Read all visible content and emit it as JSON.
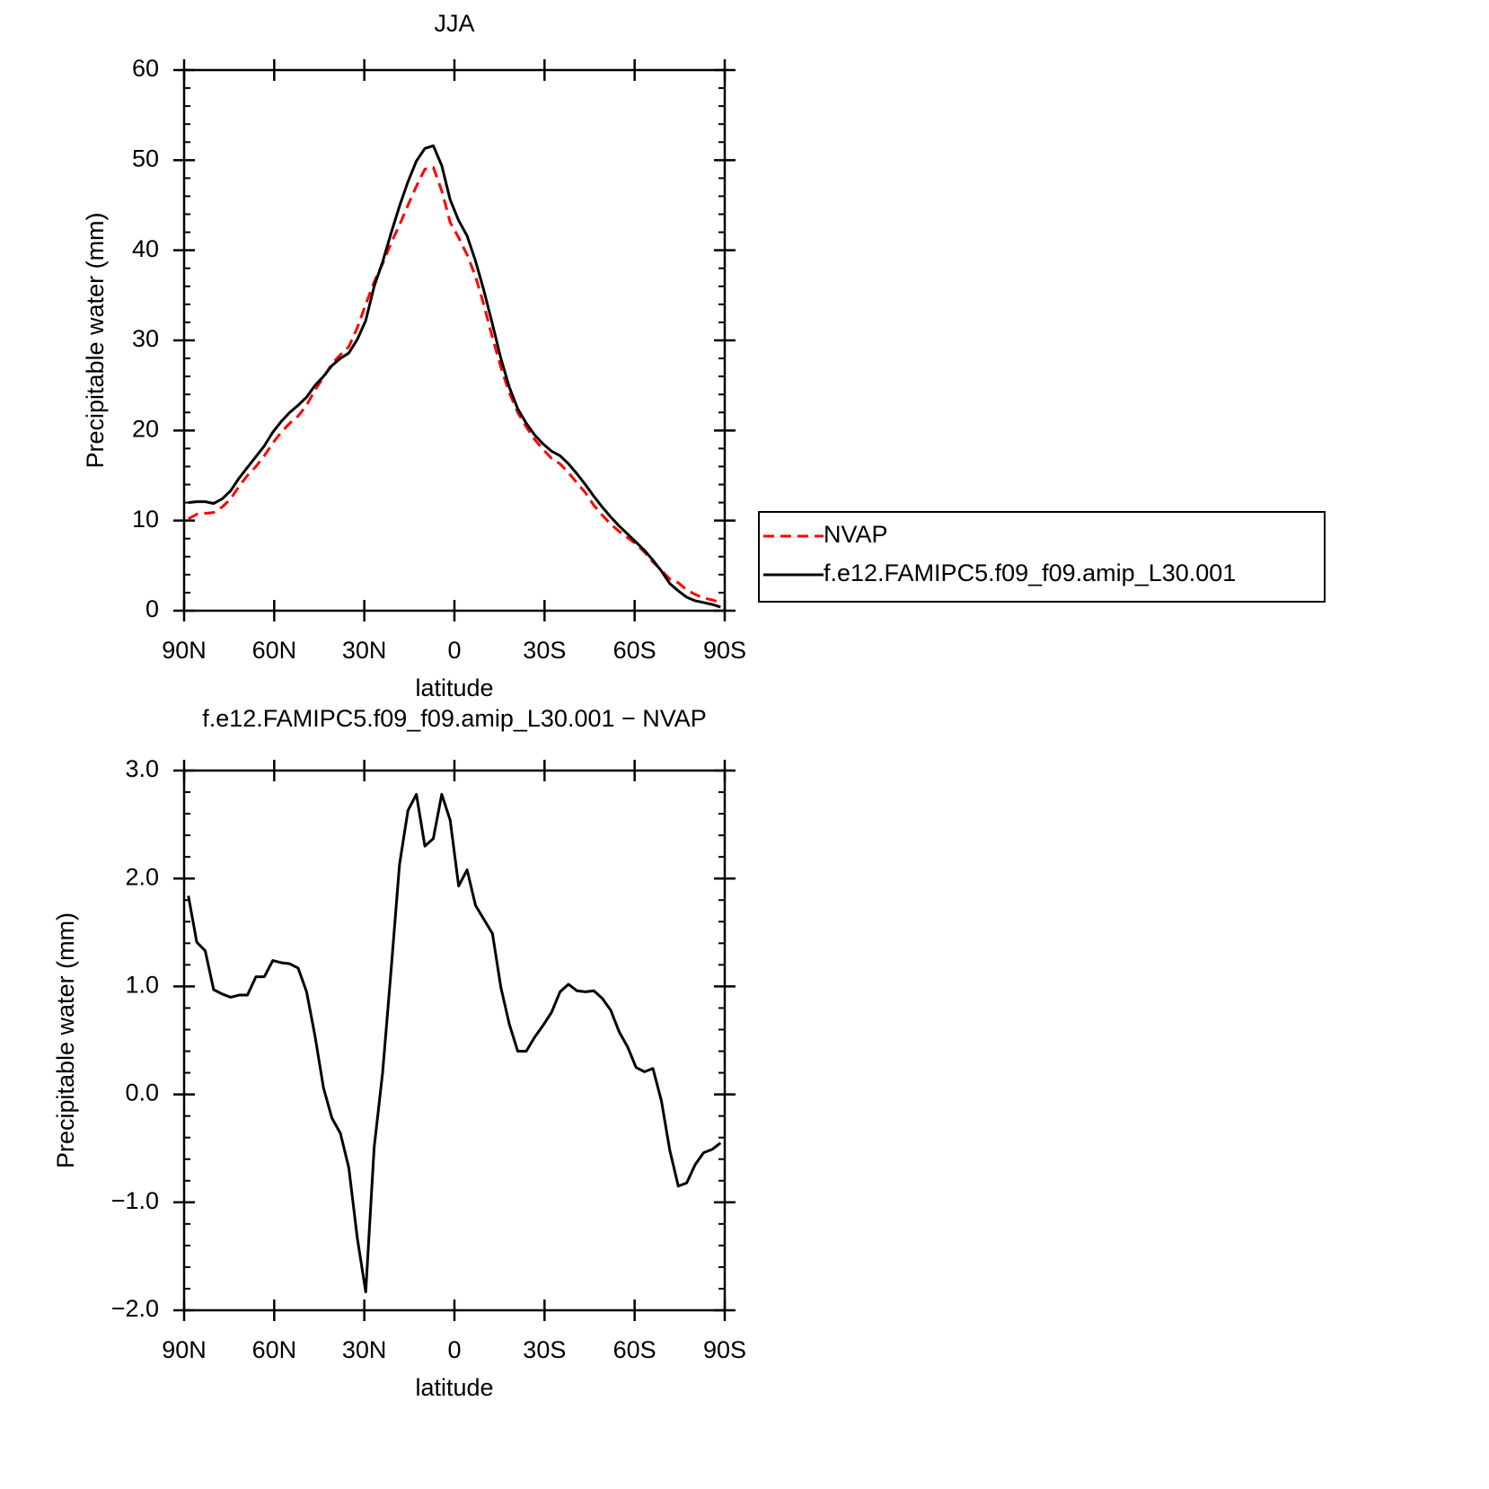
{
  "chart_data": [
    {
      "type": "line",
      "title": "JJA",
      "xlabel": "latitude",
      "ylabel": "Precipitable water (mm)",
      "x": [
        88.59,
        85.78,
        82.97,
        80.16,
        77.34,
        74.53,
        71.72,
        68.91,
        66.09,
        63.28,
        60.47,
        57.66,
        54.84,
        52.03,
        49.22,
        46.41,
        43.59,
        40.78,
        37.97,
        35.16,
        32.34,
        29.53,
        26.72,
        23.91,
        21.09,
        18.28,
        15.47,
        12.66,
        9.84,
        7.03,
        4.22,
        1.41,
        -1.41,
        -4.22,
        -7.03,
        -9.84,
        -12.66,
        -15.47,
        -18.28,
        -21.09,
        -23.91,
        -26.72,
        -29.53,
        -32.34,
        -35.16,
        -37.97,
        -40.78,
        -43.59,
        -46.41,
        -49.22,
        -52.03,
        -54.84,
        -57.66,
        -60.47,
        -63.28,
        -66.09,
        -68.91,
        -71.72,
        -74.53,
        -77.34,
        -80.16,
        -82.97,
        -85.78,
        -88.59
      ],
      "series": [
        {
          "name": "NVAP",
          "color": "#ff0000",
          "line_style": "dashed",
          "values": [
            10.2,
            10.7,
            10.8,
            10.9,
            11.5,
            12.4,
            13.8,
            15.0,
            16.0,
            17.2,
            18.6,
            19.8,
            20.8,
            21.6,
            22.8,
            24.5,
            25.9,
            27.4,
            28.4,
            29.3,
            31.4,
            34.0,
            36.5,
            38.5,
            40.8,
            42.8,
            45.0,
            47.1,
            49.0,
            49.2,
            46.6,
            43.1,
            41.4,
            39.5,
            37.1,
            33.9,
            30.3,
            27.0,
            24.2,
            22.0,
            20.4,
            19.0,
            17.9,
            16.9,
            16.3,
            15.3,
            14.2,
            13.1,
            11.7,
            10.6,
            9.6,
            8.8,
            8.1,
            7.4,
            6.5,
            5.4,
            4.5,
            3.5,
            3.1,
            2.3,
            1.8,
            1.4,
            1.2,
            0.9
          ]
        },
        {
          "name": "f.e12.FAMIPC5.f09_f09.amip_L30.001",
          "color": "#000000",
          "line_style": "solid",
          "values": [
            12.0,
            12.1,
            12.1,
            11.9,
            12.4,
            13.3,
            14.7,
            15.9,
            17.1,
            18.3,
            19.8,
            21.0,
            22.0,
            22.8,
            23.7,
            25.0,
            26.0,
            27.2,
            28.0,
            28.6,
            30.1,
            32.2,
            36.0,
            38.7,
            41.9,
            44.9,
            47.6,
            49.9,
            51.3,
            51.6,
            49.4,
            45.6,
            43.3,
            41.6,
            38.8,
            35.5,
            31.8,
            28.0,
            24.8,
            22.4,
            20.8,
            19.5,
            18.5,
            17.7,
            17.2,
            16.3,
            15.2,
            14.0,
            12.7,
            11.5,
            10.4,
            9.4,
            8.5,
            7.6,
            6.7,
            5.6,
            4.4,
            3.0,
            2.2,
            1.5,
            1.1,
            0.9,
            0.7,
            0.4
          ]
        }
      ],
      "xlim": [
        90,
        -90
      ],
      "xticks": [
        {
          "value": 90,
          "label": "90N"
        },
        {
          "value": 60,
          "label": "60N"
        },
        {
          "value": 30,
          "label": "30N"
        },
        0,
        {
          "value": -30,
          "label": "30S"
        },
        {
          "value": -60,
          "label": "60S"
        },
        {
          "value": -90,
          "label": "90S"
        }
      ],
      "ylim": [
        0,
        60
      ],
      "yticks": [
        0,
        10,
        20,
        30,
        40,
        50,
        60
      ],
      "yminorticks": [
        2,
        4,
        6,
        8,
        12,
        14,
        16,
        18,
        22,
        24,
        26,
        28,
        32,
        34,
        36,
        38,
        42,
        44,
        46,
        48,
        52,
        54,
        56,
        58
      ],
      "legend": "outside-right"
    },
    {
      "type": "line",
      "title": "f.e12.FAMIPC5.f09_f09.amip_L30.001 − NVAP",
      "xlabel": "latitude",
      "ylabel": "Precipitable water (mm)",
      "x": [
        88.59,
        85.78,
        82.97,
        80.16,
        77.34,
        74.53,
        71.72,
        68.91,
        66.09,
        63.28,
        60.47,
        57.66,
        54.84,
        52.03,
        49.22,
        46.41,
        43.59,
        40.78,
        37.97,
        35.16,
        32.34,
        29.53,
        26.72,
        23.91,
        21.09,
        18.28,
        15.47,
        12.66,
        9.84,
        7.03,
        4.22,
        1.41,
        -1.41,
        -4.22,
        -7.03,
        -9.84,
        -12.66,
        -15.47,
        -18.28,
        -21.09,
        -23.91,
        -26.72,
        -29.53,
        -32.34,
        -35.16,
        -37.97,
        -40.78,
        -43.59,
        -46.41,
        -49.22,
        -52.03,
        -54.84,
        -57.66,
        -60.47,
        -63.28,
        -66.09,
        -68.91,
        -71.72,
        -74.53,
        -77.34,
        -80.16,
        -82.97,
        -85.78,
        -88.59
      ],
      "color": "#000000",
      "values": [
        1.84,
        1.41,
        1.33,
        0.97,
        0.93,
        0.9,
        0.92,
        0.92,
        1.09,
        1.09,
        1.24,
        1.22,
        1.21,
        1.17,
        0.95,
        0.54,
        0.06,
        -0.22,
        -0.36,
        -0.68,
        -1.33,
        -1.83,
        -0.49,
        0.2,
        1.15,
        2.13,
        2.63,
        2.78,
        2.3,
        2.37,
        2.78,
        2.54,
        1.93,
        2.08,
        1.75,
        1.62,
        1.49,
        0.99,
        0.65,
        0.4,
        0.4,
        0.53,
        0.64,
        0.76,
        0.95,
        1.02,
        0.96,
        0.95,
        0.96,
        0.89,
        0.78,
        0.58,
        0.44,
        0.25,
        0.21,
        0.24,
        -0.06,
        -0.52,
        -0.85,
        -0.82,
        -0.65,
        -0.54,
        -0.51,
        -0.45
      ],
      "xlim": [
        90,
        -90
      ],
      "xticks": [
        {
          "value": 90,
          "label": "90N"
        },
        {
          "value": 60,
          "label": "60N"
        },
        {
          "value": 30,
          "label": "30N"
        },
        0,
        {
          "value": -30,
          "label": "30S"
        },
        {
          "value": -60,
          "label": "60S"
        },
        {
          "value": -90,
          "label": "90S"
        }
      ],
      "ylim": [
        -2,
        3
      ],
      "yticks": [
        {
          "value": -2,
          "label": "−2.0"
        },
        {
          "value": -1,
          "label": "−1.0"
        },
        {
          "value": 0,
          "label": "0.0"
        },
        {
          "value": 1,
          "label": "1.0"
        },
        {
          "value": 2,
          "label": "2.0"
        },
        {
          "value": 3,
          "label": "3.0"
        }
      ],
      "yminorticks": [
        -1.8,
        -1.6,
        -1.4,
        -1.2,
        -0.8,
        -0.6,
        -0.4,
        -0.2,
        0.2,
        0.4,
        0.6,
        0.8,
        1.2,
        1.4,
        1.6,
        1.8,
        2.2,
        2.4,
        2.6,
        2.8
      ]
    }
  ]
}
